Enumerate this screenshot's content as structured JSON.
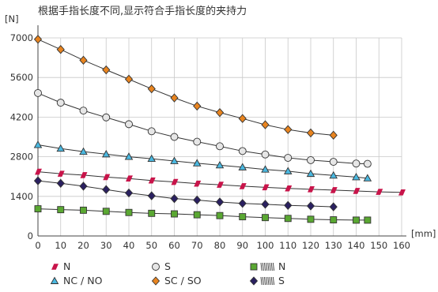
{
  "chart_data": {
    "type": "line",
    "title": "根据手指长度不同,显示符合手指长度的夹持力",
    "ylabel": "[N]",
    "xlabel": "[mm]",
    "xlim": [
      0,
      160
    ],
    "ylim": [
      0,
      7000
    ],
    "xticks": [
      0,
      10,
      20,
      30,
      40,
      50,
      60,
      70,
      80,
      90,
      100,
      110,
      120,
      130,
      140,
      150,
      160
    ],
    "yticks": [
      0,
      1400,
      2800,
      4200,
      5600,
      7000
    ],
    "grid": true,
    "series": [
      {
        "name": "SC / SO",
        "marker": "diamond",
        "color": "#e8841f",
        "x": [
          0,
          10,
          20,
          30,
          40,
          50,
          60,
          70,
          80,
          90,
          100,
          110,
          120,
          130
        ],
        "y": [
          6950,
          6590,
          6210,
          5870,
          5540,
          5200,
          4880,
          4590,
          4360,
          4150,
          3930,
          3760,
          3640,
          3560
        ]
      },
      {
        "name": "S",
        "marker": "circle",
        "color": "#e6e6e6",
        "x": [
          0,
          10,
          20,
          30,
          40,
          50,
          60,
          70,
          80,
          90,
          100,
          110,
          120,
          130,
          140,
          145
        ],
        "y": [
          5050,
          4710,
          4430,
          4190,
          3950,
          3700,
          3500,
          3330,
          3170,
          3000,
          2880,
          2760,
          2680,
          2620,
          2560,
          2550
        ]
      },
      {
        "name": "NC / NO",
        "marker": "triangle",
        "color": "#4ab8e0",
        "x": [
          0,
          10,
          20,
          30,
          40,
          50,
          60,
          70,
          80,
          90,
          100,
          110,
          120,
          130,
          140,
          145
        ],
        "y": [
          3220,
          3090,
          2980,
          2890,
          2800,
          2730,
          2650,
          2570,
          2500,
          2430,
          2350,
          2290,
          2200,
          2140,
          2080,
          2040
        ]
      },
      {
        "name": "N",
        "marker": "parallelogram",
        "color": "#c8144a",
        "x": [
          0,
          10,
          20,
          30,
          40,
          50,
          60,
          70,
          80,
          90,
          100,
          110,
          120,
          130,
          140,
          150,
          160
        ],
        "y": [
          2270,
          2200,
          2150,
          2080,
          2030,
          1960,
          1910,
          1850,
          1810,
          1760,
          1720,
          1680,
          1650,
          1620,
          1590,
          1560,
          1540
        ]
      },
      {
        "name": "S",
        "marker": "diamond",
        "color": "#2a2060",
        "icon": "spring-icon",
        "x": [
          0,
          10,
          20,
          30,
          40,
          50,
          60,
          70,
          80,
          90,
          100,
          110,
          120,
          130
        ],
        "y": [
          1950,
          1860,
          1760,
          1640,
          1520,
          1420,
          1320,
          1270,
          1200,
          1150,
          1120,
          1080,
          1060,
          1030
        ]
      },
      {
        "name": "N",
        "marker": "square",
        "color": "#5aa832",
        "icon": "spring-icon",
        "x": [
          0,
          10,
          20,
          30,
          40,
          50,
          60,
          70,
          80,
          90,
          100,
          110,
          120,
          130,
          140,
          145
        ],
        "y": [
          960,
          930,
          910,
          870,
          830,
          800,
          780,
          750,
          720,
          680,
          650,
          620,
          590,
          570,
          560,
          560
        ]
      }
    ]
  },
  "legend": [
    {
      "label": "N",
      "marker": "parallelogram",
      "color": "#c8144a"
    },
    {
      "label": "S",
      "marker": "circle",
      "color": "#e6e6e6"
    },
    {
      "label": "N",
      "marker": "square",
      "color": "#5aa832",
      "icon": "spring-icon"
    },
    {
      "label": "NC / NO",
      "marker": "triangle",
      "color": "#4ab8e0"
    },
    {
      "label": "SC / SO",
      "marker": "diamond",
      "color": "#e8841f"
    },
    {
      "label": "S",
      "marker": "diamond",
      "color": "#2a2060",
      "icon": "spring-icon"
    }
  ]
}
